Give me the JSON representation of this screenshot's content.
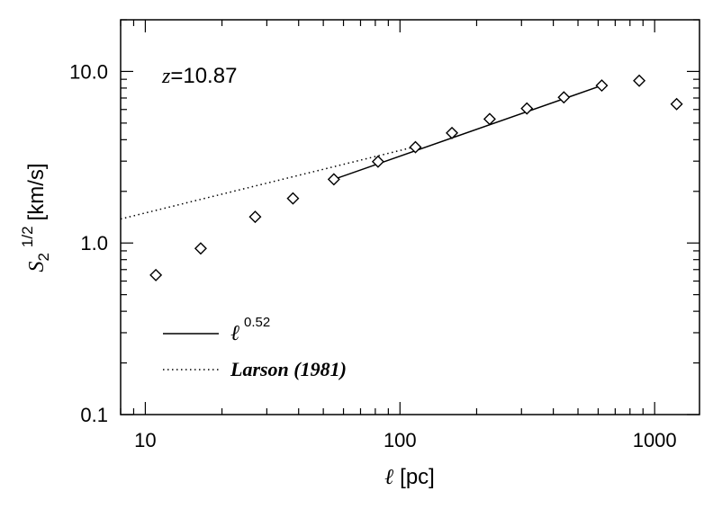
{
  "chart_data": {
    "type": "scatter",
    "x_scale": "log",
    "y_scale": "log",
    "xlim": [
      8,
      1500
    ],
    "ylim": [
      0.1,
      20
    ],
    "xlabel_symbol": "ℓ",
    "xlabel_unit": "[pc]",
    "ylabel_symbol": "S",
    "ylabel_sub": "2",
    "ylabel_sup": "1/2",
    "ylabel_unit": "[km/s]",
    "x_ticks": [
      10,
      100,
      1000
    ],
    "x_tick_labels": [
      "10",
      "100",
      "1000"
    ],
    "y_ticks": [
      0.1,
      1,
      10
    ],
    "y_tick_labels": [
      "0.1",
      "1.0",
      "10.0"
    ],
    "annotation_sym": "z",
    "annotation_eq": "=10.87",
    "points": {
      "marker": "diamond",
      "x": [
        11,
        16.5,
        27,
        38,
        55,
        82,
        115,
        160,
        225,
        315,
        440,
        620,
        870,
        1220
      ],
      "y": [
        0.65,
        0.93,
        1.42,
        1.82,
        2.35,
        2.98,
        3.62,
        4.38,
        5.28,
        6.08,
        7.06,
        8.28,
        8.83,
        6.45
      ]
    },
    "fit_line": {
      "label": "ℓ",
      "label_sup": "0.52",
      "style": "solid",
      "exponent": 0.52,
      "x_range": [
        55,
        620
      ],
      "y_at_start": 2.35
    },
    "larson_line": {
      "label": "Larson (1981)",
      "style": "dotted",
      "x_range": [
        8,
        120
      ],
      "y_range": [
        1.38,
        3.7
      ]
    },
    "grid": false,
    "legend_placement": "bottom-left"
  }
}
